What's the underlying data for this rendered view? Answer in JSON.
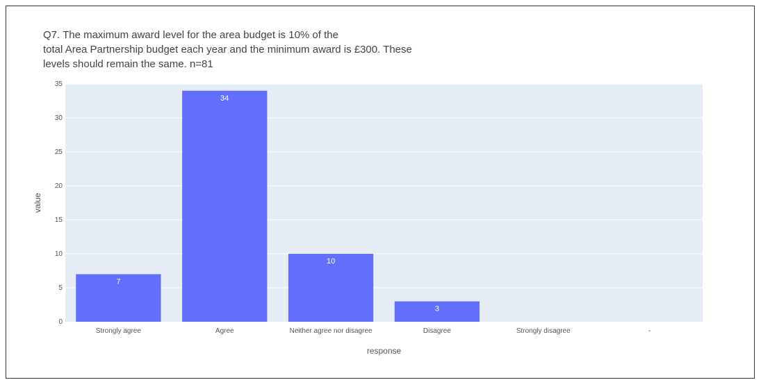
{
  "chart_data": {
    "type": "bar",
    "title_lines": [
      "Q7. The maximum award level for the area budget is 10% of the",
      "total Area Partnership budget each year and the minimum award is £300. These",
      "levels should remain the same. n=81"
    ],
    "categories": [
      "Strongly agree",
      "Agree",
      "Neither agree nor disagree",
      "Disagree",
      "Strongly disagree",
      "-"
    ],
    "values": [
      7,
      34,
      10,
      3,
      0,
      0
    ],
    "data_labels": [
      "7",
      "34",
      "10",
      "3",
      "",
      ""
    ],
    "xlabel": "response",
    "ylabel": "value",
    "ylim": [
      0,
      35
    ],
    "yticks": [
      0,
      5,
      10,
      15,
      20,
      25,
      30,
      35
    ],
    "grid": true,
    "colors": {
      "bar": "#636efa",
      "plot_bg": "#e5ecf6",
      "grid": "#ffffff"
    }
  }
}
